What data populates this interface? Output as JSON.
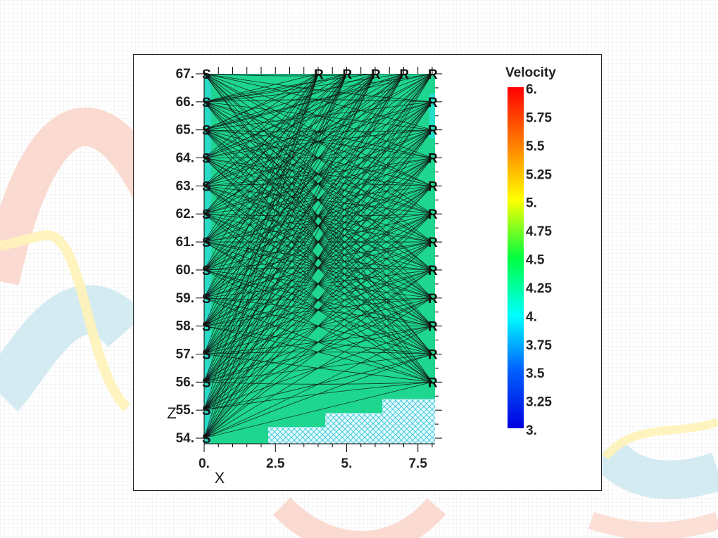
{
  "chart_data": {
    "type": "heatmap",
    "title": "",
    "xlabel": "X",
    "ylabel": "Z",
    "xlim": [
      0,
      8.1
    ],
    "ylim": [
      53.8,
      67.2
    ],
    "x_ticks": [
      0,
      2.5,
      5,
      7.5
    ],
    "x_tick_labels": [
      "0.",
      "2.5",
      "5.",
      "7.5"
    ],
    "y_ticks": [
      54,
      55,
      56,
      57,
      58,
      59,
      60,
      61,
      62,
      63,
      64,
      65,
      66,
      67
    ],
    "y_tick_labels": [
      "54.",
      "55.",
      "56.",
      "57.",
      "58.",
      "59.",
      "60.",
      "61.",
      "62.",
      "63.",
      "64.",
      "65.",
      "66.",
      "67."
    ],
    "colorbar": {
      "title": "Velocity",
      "min": 3,
      "max": 6,
      "ticks": [
        6,
        5.75,
        5.5,
        5.25,
        5,
        4.75,
        4.5,
        4.25,
        4,
        3.75,
        3.5,
        3.25,
        3
      ],
      "tick_labels": [
        "6.",
        "5.75",
        "5.5",
        "5.25",
        "5.",
        "4.75",
        "4.5",
        "4.25",
        "4.",
        "3.75",
        "3.5",
        "3.25",
        "3."
      ]
    },
    "background_velocity": 4.3,
    "left_edge_velocity": 3.9,
    "right_edge_velocity": 4.0,
    "sources": {
      "label": "S",
      "x": 0,
      "z": [
        67,
        66,
        65,
        64,
        63,
        62,
        61,
        60,
        59,
        58,
        57,
        56,
        55,
        54
      ]
    },
    "receivers": {
      "label": "R",
      "top": {
        "z": 67,
        "x": [
          4.0,
          5.0,
          6.0,
          7.0,
          8.0
        ]
      },
      "right": {
        "x": 8.0,
        "z": [
          66,
          65,
          64,
          63,
          62,
          61,
          60,
          59,
          58,
          57,
          56
        ]
      }
    },
    "no_coverage_region": {
      "label": "hatched (no ray coverage)",
      "steps": [
        {
          "x_from": 2.25,
          "x_to": 4.25,
          "z_top": 54.4
        },
        {
          "x_from": 4.25,
          "x_to": 6.25,
          "z_top": 54.9
        },
        {
          "x_from": 6.25,
          "x_to": 8.1,
          "z_top": 55.4
        }
      ]
    },
    "colors": {
      "background": "#1ed68f",
      "left_edge": "#2ad9c3",
      "ray_line": "#111111",
      "hatch": "#44c8d8"
    }
  }
}
